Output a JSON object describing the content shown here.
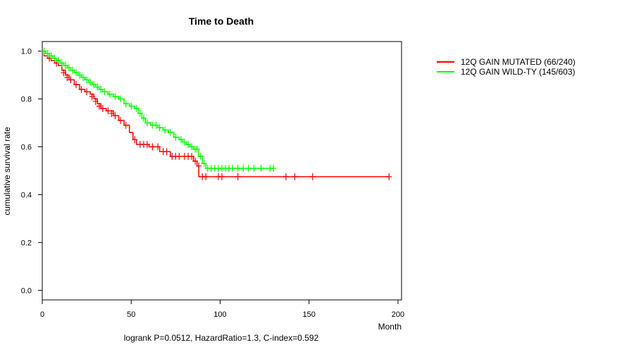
{
  "chart_data": {
    "type": "line",
    "subtype": "kaplan-meier",
    "title": "Time to Death",
    "xlabel": "Month",
    "ylabel": "cumulative survival rate",
    "xlim": [
      0,
      202
    ],
    "ylim": [
      -0.04,
      1.04
    ],
    "xticks": [
      0,
      50,
      100,
      150,
      200
    ],
    "yticks": [
      0.0,
      0.2,
      0.4,
      0.6,
      0.8,
      1.0
    ],
    "ytick_labels": [
      "0.0",
      "0.2",
      "0.4",
      "0.6",
      "0.8",
      "1.0"
    ],
    "legend_position": "top-right, outside plot",
    "footnote": "logrank P=0.0512, HazardRatio=1.3, C-index=0.592",
    "series": [
      {
        "name": "12Q GAIN MUTATED (66/240)",
        "color": "#ff0000",
        "steps": [
          [
            0,
            1.0
          ],
          [
            1,
            0.98
          ],
          [
            3,
            0.97
          ],
          [
            5,
            0.96
          ],
          [
            7,
            0.95
          ],
          [
            9,
            0.94
          ],
          [
            11,
            0.92
          ],
          [
            13,
            0.9
          ],
          [
            15,
            0.88
          ],
          [
            18,
            0.86
          ],
          [
            21,
            0.84
          ],
          [
            24,
            0.83
          ],
          [
            27,
            0.82
          ],
          [
            29,
            0.8
          ],
          [
            31,
            0.78
          ],
          [
            33,
            0.76
          ],
          [
            36,
            0.75
          ],
          [
            40,
            0.73
          ],
          [
            43,
            0.71
          ],
          [
            46,
            0.69
          ],
          [
            49,
            0.66
          ],
          [
            51,
            0.63
          ],
          [
            53,
            0.61
          ],
          [
            60,
            0.6
          ],
          [
            63,
            0.6
          ],
          [
            66,
            0.58
          ],
          [
            72,
            0.56
          ],
          [
            85,
            0.54
          ],
          [
            87,
            0.52
          ],
          [
            88,
            0.475
          ],
          [
            195,
            0.475
          ]
        ],
        "censors": [
          [
            4,
            0.97
          ],
          [
            8,
            0.95
          ],
          [
            12,
            0.91
          ],
          [
            14,
            0.89
          ],
          [
            16,
            0.88
          ],
          [
            19,
            0.86
          ],
          [
            22,
            0.84
          ],
          [
            25,
            0.83
          ],
          [
            28,
            0.81
          ],
          [
            30,
            0.79
          ],
          [
            32,
            0.77
          ],
          [
            34,
            0.76
          ],
          [
            37,
            0.75
          ],
          [
            39,
            0.74
          ],
          [
            41,
            0.73
          ],
          [
            44,
            0.71
          ],
          [
            47,
            0.69
          ],
          [
            52,
            0.63
          ],
          [
            55,
            0.61
          ],
          [
            57,
            0.61
          ],
          [
            59,
            0.61
          ],
          [
            62,
            0.6
          ],
          [
            65,
            0.6
          ],
          [
            68,
            0.58
          ],
          [
            70,
            0.58
          ],
          [
            73,
            0.56
          ],
          [
            75,
            0.56
          ],
          [
            77,
            0.56
          ],
          [
            80,
            0.56
          ],
          [
            82,
            0.56
          ],
          [
            84,
            0.56
          ],
          [
            86,
            0.54
          ],
          [
            88,
            0.52
          ],
          [
            90,
            0.475
          ],
          [
            92,
            0.475
          ],
          [
            99,
            0.475
          ],
          [
            101,
            0.475
          ],
          [
            110,
            0.475
          ],
          [
            137,
            0.475
          ],
          [
            142,
            0.475
          ],
          [
            152,
            0.475
          ],
          [
            195,
            0.475
          ]
        ]
      },
      {
        "name": "12Q GAIN WILD-TY (145/603)",
        "color": "#00ff00",
        "steps": [
          [
            0,
            1.0
          ],
          [
            2,
            0.99
          ],
          [
            4,
            0.98
          ],
          [
            6,
            0.97
          ],
          [
            8,
            0.96
          ],
          [
            10,
            0.95
          ],
          [
            12,
            0.94
          ],
          [
            14,
            0.93
          ],
          [
            16,
            0.92
          ],
          [
            18,
            0.91
          ],
          [
            20,
            0.9
          ],
          [
            22,
            0.89
          ],
          [
            24,
            0.88
          ],
          [
            26,
            0.87
          ],
          [
            28,
            0.86
          ],
          [
            30,
            0.85
          ],
          [
            32,
            0.84
          ],
          [
            34,
            0.83
          ],
          [
            37,
            0.82
          ],
          [
            40,
            0.81
          ],
          [
            43,
            0.8
          ],
          [
            46,
            0.78
          ],
          [
            49,
            0.77
          ],
          [
            52,
            0.76
          ],
          [
            54,
            0.74
          ],
          [
            56,
            0.72
          ],
          [
            58,
            0.7
          ],
          [
            61,
            0.69
          ],
          [
            65,
            0.68
          ],
          [
            68,
            0.67
          ],
          [
            71,
            0.66
          ],
          [
            74,
            0.64
          ],
          [
            77,
            0.63
          ],
          [
            79,
            0.62
          ],
          [
            81,
            0.61
          ],
          [
            83,
            0.6
          ],
          [
            85,
            0.59
          ],
          [
            88,
            0.56
          ],
          [
            90,
            0.53
          ],
          [
            92,
            0.51
          ],
          [
            130,
            0.51
          ]
        ],
        "censors": [
          [
            1,
            1.0
          ],
          [
            3,
            0.99
          ],
          [
            5,
            0.98
          ],
          [
            7,
            0.97
          ],
          [
            9,
            0.96
          ],
          [
            11,
            0.95
          ],
          [
            13,
            0.94
          ],
          [
            15,
            0.93
          ],
          [
            17,
            0.92
          ],
          [
            19,
            0.91
          ],
          [
            21,
            0.9
          ],
          [
            23,
            0.89
          ],
          [
            25,
            0.88
          ],
          [
            27,
            0.87
          ],
          [
            29,
            0.86
          ],
          [
            31,
            0.85
          ],
          [
            33,
            0.84
          ],
          [
            35,
            0.83
          ],
          [
            38,
            0.82
          ],
          [
            41,
            0.81
          ],
          [
            44,
            0.8
          ],
          [
            47,
            0.78
          ],
          [
            50,
            0.77
          ],
          [
            53,
            0.76
          ],
          [
            55,
            0.74
          ],
          [
            57,
            0.72
          ],
          [
            59,
            0.7
          ],
          [
            62,
            0.69
          ],
          [
            64,
            0.69
          ],
          [
            66,
            0.68
          ],
          [
            69,
            0.67
          ],
          [
            72,
            0.66
          ],
          [
            75,
            0.64
          ],
          [
            78,
            0.63
          ],
          [
            80,
            0.62
          ],
          [
            82,
            0.61
          ],
          [
            84,
            0.6
          ],
          [
            86,
            0.59
          ],
          [
            87,
            0.59
          ],
          [
            89,
            0.56
          ],
          [
            91,
            0.53
          ],
          [
            93,
            0.51
          ],
          [
            95,
            0.51
          ],
          [
            97,
            0.51
          ],
          [
            99,
            0.51
          ],
          [
            101,
            0.51
          ],
          [
            103,
            0.51
          ],
          [
            105,
            0.51
          ],
          [
            107,
            0.51
          ],
          [
            110,
            0.51
          ],
          [
            113,
            0.51
          ],
          [
            116,
            0.51
          ],
          [
            119,
            0.51
          ],
          [
            123,
            0.51
          ],
          [
            128,
            0.51
          ],
          [
            130,
            0.51
          ]
        ]
      }
    ]
  }
}
